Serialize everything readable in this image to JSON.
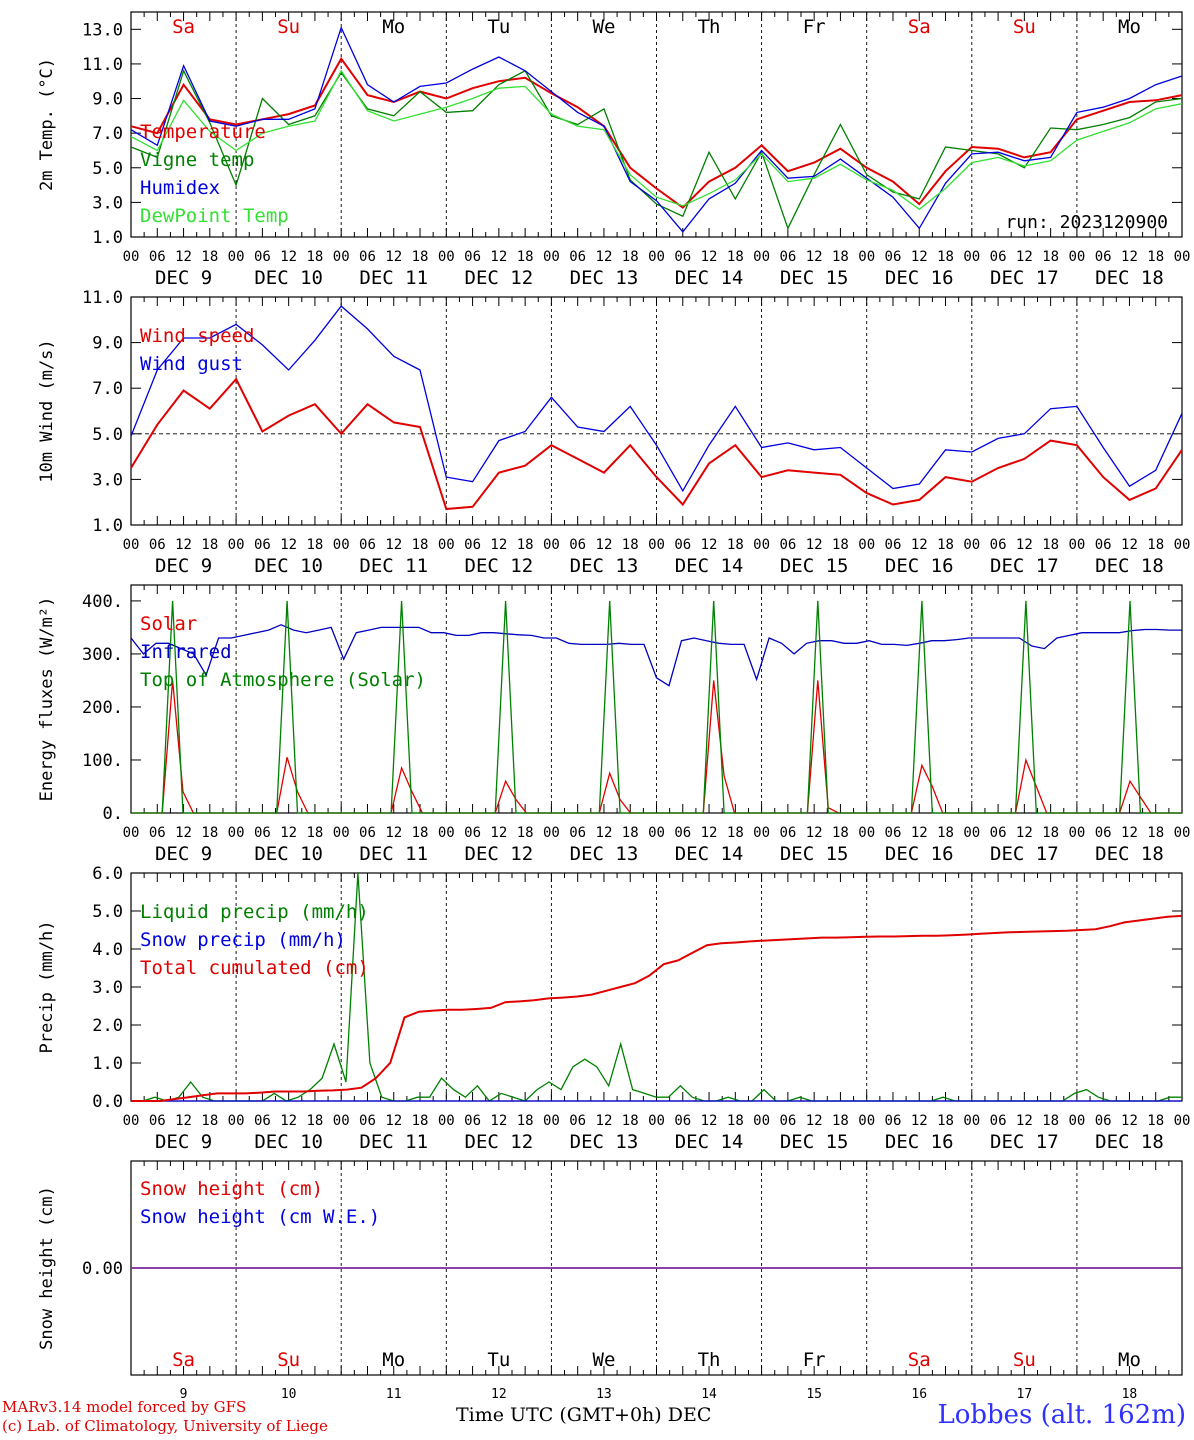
{
  "footer": {
    "model_line": "MARv3.14 model forced by GFS",
    "copyright_line": "(c) Lab. of Climatology, University of Liege",
    "x_title": "Time UTC (GMT+0h) DEC",
    "station": "Lobbes (alt. 162m)"
  },
  "weekdays": [
    "Sa",
    "Su",
    "Mo",
    "Tu",
    "We",
    "Th",
    "Fr",
    "Sa",
    "Su",
    "Mo"
  ],
  "weekend_flags": [
    true,
    true,
    false,
    false,
    false,
    false,
    false,
    true,
    true,
    false
  ],
  "day_labels": [
    "DEC  9",
    "DEC 10",
    "DEC 11",
    "DEC 12",
    "DEC 13",
    "DEC 14",
    "DEC 15",
    "DEC 16",
    "DEC 17",
    "DEC 18"
  ],
  "day_numbers": [
    "9",
    "10",
    "11",
    "12",
    "13",
    "14",
    "15",
    "16",
    "17",
    "18"
  ],
  "hour_ticks": [
    "00",
    "06",
    "12",
    "18"
  ],
  "last_hour_tick": "00",
  "chart_data": [
    {
      "id": "temp",
      "type": "line",
      "ylabel": "2m Temp. (°C)",
      "ylim": [
        1.0,
        14.0
      ],
      "yticks": [
        "1.0",
        "3.0",
        "5.0",
        "7.0",
        "9.0",
        "11.0",
        "13.0"
      ],
      "annotation": "run: 2023120900",
      "x_hours_step": 6,
      "series": [
        {
          "name": "Temperature",
          "color": "#e00000",
          "values": [
            7.4,
            7.0,
            9.8,
            7.8,
            7.5,
            7.8,
            8.1,
            8.6,
            11.3,
            9.2,
            8.8,
            9.4,
            9.0,
            9.6,
            10.0,
            10.2,
            9.3,
            8.5,
            7.4,
            5.0,
            3.8,
            2.7,
            4.2,
            5.0,
            6.3,
            4.8,
            5.3,
            6.1,
            5.0,
            4.2,
            2.9,
            4.8,
            6.2,
            6.1,
            5.6,
            5.9,
            7.8,
            8.3,
            8.8,
            8.9,
            9.2
          ]
        },
        {
          "name": "Vigne temp",
          "color": "#008000",
          "values": [
            6.2,
            5.6,
            10.6,
            7.6,
            4.0,
            9.0,
            7.5,
            8.0,
            10.5,
            8.4,
            8.0,
            9.4,
            8.2,
            8.3,
            9.8,
            10.6,
            8.0,
            7.5,
            8.4,
            4.3,
            2.9,
            2.2,
            5.9,
            3.2,
            5.9,
            1.5,
            4.6,
            7.5,
            4.6,
            3.6,
            3.2,
            6.2,
            6.0,
            5.8,
            5.0,
            7.3,
            7.2,
            7.5,
            7.9,
            8.8,
            9.0
          ]
        },
        {
          "name": "Humidex",
          "color": "#0000e0",
          "values": [
            7.2,
            6.3,
            10.9,
            7.7,
            7.4,
            7.8,
            7.8,
            8.4,
            13.1,
            9.8,
            8.8,
            9.7,
            9.9,
            10.7,
            11.4,
            10.6,
            9.4,
            8.2,
            7.4,
            4.2,
            3.1,
            1.3,
            3.2,
            4.1,
            6.0,
            4.4,
            4.5,
            5.5,
            4.4,
            3.3,
            1.5,
            4.1,
            5.8,
            5.9,
            5.4,
            5.6,
            8.2,
            8.5,
            9.0,
            9.8,
            10.3
          ]
        },
        {
          "name": "DewPoint Temp",
          "color": "#33e033",
          "values": [
            6.8,
            6.0,
            8.9,
            7.1,
            6.0,
            7.0,
            7.4,
            7.7,
            10.6,
            8.3,
            7.7,
            8.1,
            8.5,
            9.0,
            9.6,
            9.7,
            8.1,
            7.4,
            7.2,
            4.6,
            3.3,
            2.8,
            3.5,
            4.3,
            5.8,
            4.2,
            4.4,
            5.2,
            4.3,
            3.7,
            2.6,
            3.8,
            5.3,
            5.6,
            5.1,
            5.4,
            6.6,
            7.1,
            7.6,
            8.4,
            8.7
          ]
        }
      ]
    },
    {
      "id": "wind",
      "type": "line",
      "ylabel": "10m Wind (m/s)",
      "ylim": [
        1.0,
        11.0
      ],
      "yticks": [
        "1.0",
        "3.0",
        "5.0",
        "7.0",
        "9.0",
        "11.0"
      ],
      "reference_line": 5.0,
      "x_hours_step": 6,
      "series": [
        {
          "name": "Wind speed",
          "color": "#e00000",
          "values": [
            3.5,
            5.4,
            6.9,
            6.1,
            7.4,
            5.1,
            5.8,
            6.3,
            5.0,
            6.3,
            5.5,
            5.3,
            1.7,
            1.8,
            3.3,
            3.6,
            4.5,
            3.9,
            3.3,
            4.5,
            3.1,
            1.9,
            3.7,
            4.5,
            3.1,
            3.4,
            3.3,
            3.2,
            2.4,
            1.9,
            2.1,
            3.1,
            2.9,
            3.5,
            3.9,
            4.7,
            4.5,
            3.1,
            2.1,
            2.6,
            4.3
          ]
        },
        {
          "name": "Wind gust",
          "color": "#0000e0",
          "values": [
            4.9,
            7.8,
            9.2,
            9.2,
            9.8,
            8.9,
            7.8,
            9.1,
            10.6,
            9.6,
            8.4,
            7.8,
            3.1,
            2.9,
            4.7,
            5.1,
            6.6,
            5.3,
            5.1,
            6.2,
            4.5,
            2.5,
            4.5,
            6.2,
            4.4,
            4.6,
            4.3,
            4.4,
            3.5,
            2.6,
            2.8,
            4.3,
            4.2,
            4.8,
            5.0,
            6.1,
            6.2,
            4.4,
            2.7,
            3.4,
            5.9
          ]
        }
      ]
    },
    {
      "id": "flux",
      "type": "line",
      "ylabel": "Energy fluxes (W/m²)",
      "ylim": [
        0,
        430
      ],
      "yticks": [
        "0.",
        "100.",
        "200.",
        "300.",
        "400."
      ],
      "x_hours_step": 3,
      "series": [
        {
          "name": "Solar",
          "color": "#e00000",
          "values": [
            0,
            0,
            0,
            0,
            250,
            40,
            0,
            0,
            0,
            0,
            0,
            0,
            0,
            0,
            0,
            105,
            40,
            0,
            0,
            0,
            0,
            0,
            0,
            0,
            0,
            0,
            85,
            40,
            0,
            0,
            0,
            0,
            0,
            0,
            0,
            0,
            60,
            25,
            0,
            0,
            0,
            0,
            0,
            0,
            0,
            0,
            75,
            25,
            0,
            0,
            0,
            0,
            0,
            0,
            0,
            0,
            250,
            70,
            0,
            0,
            0,
            0,
            0,
            0,
            0,
            0,
            250,
            10,
            0,
            0,
            0,
            0,
            0,
            0,
            0,
            0,
            90,
            50,
            0,
            0,
            0,
            0,
            0,
            0,
            0,
            0,
            100,
            50,
            0,
            0,
            0,
            0,
            0,
            0,
            0,
            0,
            60,
            30,
            0,
            0,
            0,
            0
          ]
        },
        {
          "name": "Infrared",
          "color": "#0000c0",
          "values": [
            330,
            300,
            320,
            320,
            310,
            300,
            260,
            330,
            330,
            335,
            340,
            345,
            355,
            345,
            340,
            345,
            350,
            290,
            340,
            345,
            350,
            350,
            350,
            350,
            340,
            340,
            335,
            335,
            340,
            340,
            338,
            336,
            335,
            330,
            330,
            320,
            318,
            318,
            318,
            320,
            318,
            318,
            255,
            240,
            325,
            330,
            325,
            320,
            318,
            318,
            252,
            330,
            320,
            300,
            320,
            325,
            325,
            320,
            320,
            325,
            318,
            318,
            316,
            320,
            325,
            325,
            327,
            330,
            330,
            330,
            330,
            330,
            315,
            310,
            330,
            335,
            340,
            340,
            340,
            340,
            344,
            346,
            346,
            345,
            345
          ]
        },
        {
          "name": "Top of Atmosphere (Solar)",
          "color": "#008000",
          "values": [
            0,
            0,
            0,
            0,
            400,
            0,
            0,
            0,
            0,
            0,
            0,
            0,
            0,
            0,
            0,
            400,
            0,
            0,
            0,
            0,
            0,
            0,
            0,
            0,
            0,
            0,
            400,
            0,
            0,
            0,
            0,
            0,
            0,
            0,
            0,
            0,
            400,
            0,
            0,
            0,
            0,
            0,
            0,
            0,
            0,
            0,
            400,
            0,
            0,
            0,
            0,
            0,
            0,
            0,
            0,
            0,
            400,
            0,
            0,
            0,
            0,
            0,
            0,
            0,
            0,
            0,
            400,
            0,
            0,
            0,
            0,
            0,
            0,
            0,
            0,
            0,
            400,
            0,
            0,
            0,
            0,
            0,
            0,
            0,
            0,
            0,
            400,
            0,
            0,
            0,
            0,
            0,
            0,
            0,
            0,
            0,
            400,
            0,
            0,
            0,
            0,
            0
          ]
        }
      ]
    },
    {
      "id": "precip",
      "type": "line",
      "ylabel": "Precip (mm/h)",
      "ylim": [
        0.0,
        6.0
      ],
      "yticks": [
        "0.0",
        "1.0",
        "2.0",
        "3.0",
        "4.0",
        "5.0",
        "6.0"
      ],
      "x_hours_step": 3,
      "series": [
        {
          "name": "Liquid precip (mm/h)",
          "color": "#008000",
          "values": [
            0,
            0,
            0.1,
            0,
            0.1,
            0.5,
            0.1,
            0,
            0,
            0,
            0,
            0,
            0.2,
            0,
            0.1,
            0.3,
            0.6,
            1.5,
            0.5,
            6.0,
            1.0,
            0.1,
            0,
            0,
            0.1,
            0.1,
            0.6,
            0.3,
            0.1,
            0.4,
            0,
            0.2,
            0.1,
            0,
            0.3,
            0.5,
            0.3,
            0.9,
            1.1,
            0.9,
            0.4,
            1.5,
            0.3,
            0.2,
            0.1,
            0.1,
            0.4,
            0.1,
            0,
            0,
            0.1,
            0,
            0,
            0.3,
            0,
            0,
            0.1,
            0,
            0,
            0,
            0,
            0,
            0,
            0,
            0,
            0,
            0,
            0,
            0.1,
            0,
            0,
            0,
            0,
            0,
            0,
            0,
            0,
            0,
            0,
            0.2,
            0.3,
            0.1,
            0,
            0,
            0,
            0,
            0,
            0.1,
            0.1
          ]
        },
        {
          "name": "Snow precip (mm/h)",
          "color": "#0000e0",
          "values": [
            0,
            0,
            0,
            0,
            0,
            0,
            0,
            0,
            0,
            0,
            0,
            0,
            0,
            0,
            0,
            0,
            0,
            0,
            0,
            0,
            0,
            0,
            0,
            0,
            0,
            0,
            0,
            0,
            0,
            0,
            0,
            0,
            0,
            0,
            0,
            0,
            0,
            0,
            0,
            0,
            0,
            0,
            0,
            0,
            0,
            0,
            0,
            0,
            0,
            0,
            0,
            0,
            0,
            0,
            0,
            0,
            0,
            0,
            0,
            0,
            0,
            0,
            0,
            0,
            0,
            0,
            0,
            0,
            0,
            0,
            0,
            0,
            0,
            0,
            0,
            0,
            0,
            0,
            0,
            0,
            0,
            0,
            0,
            0,
            0,
            0,
            0,
            0,
            0
          ]
        },
        {
          "name": "Total cumulated (cm)",
          "color": "#e00000",
          "values": [
            0.0,
            0.0,
            0.0,
            0.05,
            0.1,
            0.15,
            0.2,
            0.2,
            0.2,
            0.22,
            0.25,
            0.25,
            0.25,
            0.27,
            0.28,
            0.3,
            0.35,
            0.6,
            1.0,
            2.2,
            2.35,
            2.38,
            2.4,
            2.4,
            2.42,
            2.45,
            2.6,
            2.62,
            2.65,
            2.7,
            2.72,
            2.75,
            2.8,
            2.9,
            3.0,
            3.1,
            3.3,
            3.6,
            3.7,
            3.9,
            4.1,
            4.15,
            4.17,
            4.2,
            4.22,
            4.24,
            4.26,
            4.28,
            4.3,
            4.3,
            4.31,
            4.32,
            4.33,
            4.33,
            4.34,
            4.35,
            4.35,
            4.36,
            4.38,
            4.4,
            4.42,
            4.44,
            4.45,
            4.46,
            4.47,
            4.48,
            4.5,
            4.52,
            4.6,
            4.7,
            4.75,
            4.8,
            4.85,
            4.87
          ]
        }
      ]
    },
    {
      "id": "snow",
      "type": "line",
      "ylabel": "Snow height (cm)",
      "yticks": [
        "0.00"
      ],
      "series": [
        {
          "name": "Snow height (cm)",
          "color": "#e00000",
          "values": [
            0,
            0
          ]
        },
        {
          "name": "Snow height (cm W.E.)",
          "color": "#0000e0",
          "values": [
            0,
            0
          ]
        }
      ]
    }
  ]
}
